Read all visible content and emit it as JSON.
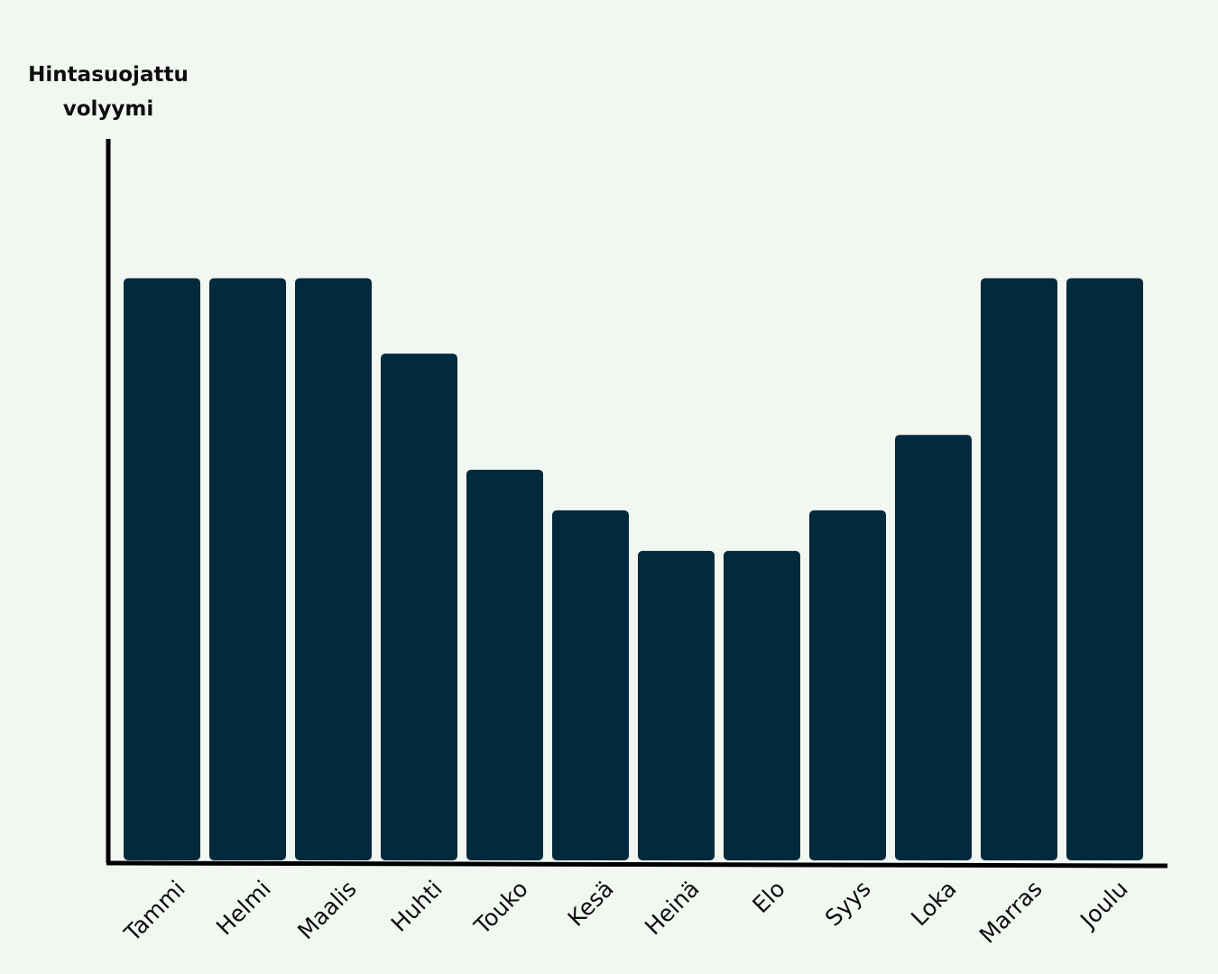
{
  "chart_data": {
    "type": "bar",
    "title": "",
    "xlabel": "",
    "ylabel": "Hintasuojattu volyymi",
    "categories": [
      "Tammi",
      "Helmi",
      "Maalis",
      "Huhti",
      "Touko",
      "Kesä",
      "Heinä",
      "Elo",
      "Syys",
      "Loka",
      "Marras",
      "Joulu"
    ],
    "values": [
      100,
      100,
      100,
      87,
      67,
      60,
      53,
      53,
      60,
      73,
      100,
      100
    ],
    "ylim": [
      0,
      124
    ],
    "y_ticks_shown": false,
    "grid": false,
    "legend": "none",
    "colors": {
      "bar": "#022a3d",
      "axis": "#000000",
      "background": "#f2f7f2"
    }
  }
}
